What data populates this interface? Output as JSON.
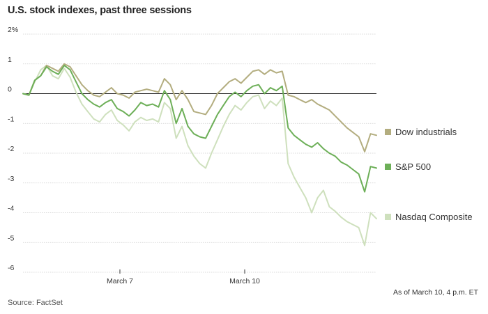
{
  "title": "U.S. stock indexes, past three sessions",
  "source": "Source: FactSet",
  "note": "As of March 10, 4 p.m. ET",
  "chart_data": {
    "type": "line",
    "x_ticks": [
      "March 7",
      "March 10"
    ],
    "y_tick_labels": [
      "2%",
      "1",
      "0",
      "-1",
      "-2",
      "-3",
      "-4",
      "-5",
      "-6"
    ],
    "y_ticks": [
      2,
      1,
      0,
      -1,
      -2,
      -3,
      -4,
      -5,
      -6
    ],
    "ylim": [
      -6,
      2
    ],
    "x_domain": [
      0,
      60
    ],
    "series": [
      {
        "name": "Dow industrials",
        "color": "#b3ad7f",
        "points": [
          [
            0,
            0
          ],
          [
            1,
            -0.05
          ],
          [
            2,
            0.45
          ],
          [
            3,
            0.6
          ],
          [
            4,
            0.95
          ],
          [
            5,
            0.85
          ],
          [
            6,
            0.75
          ],
          [
            7,
            1.0
          ],
          [
            8,
            0.9
          ],
          [
            9,
            0.6
          ],
          [
            10,
            0.3
          ],
          [
            11,
            0.1
          ],
          [
            12,
            -0.05
          ],
          [
            13,
            -0.1
          ],
          [
            14,
            0.05
          ],
          [
            15,
            0.2
          ],
          [
            16,
            0.0
          ],
          [
            17,
            -0.05
          ],
          [
            18,
            -0.15
          ],
          [
            19,
            0.05
          ],
          [
            20,
            0.1
          ],
          [
            21,
            0.15
          ],
          [
            22,
            0.1
          ],
          [
            23,
            0.05
          ],
          [
            24,
            0.5
          ],
          [
            25,
            0.3
          ],
          [
            26,
            -0.2
          ],
          [
            27,
            0.1
          ],
          [
            28,
            -0.2
          ],
          [
            29,
            -0.6
          ],
          [
            30,
            -0.65
          ],
          [
            31,
            -0.7
          ],
          [
            32,
            -0.4
          ],
          [
            33,
            0.0
          ],
          [
            34,
            0.2
          ],
          [
            35,
            0.4
          ],
          [
            36,
            0.5
          ],
          [
            37,
            0.35
          ],
          [
            38,
            0.55
          ],
          [
            39,
            0.75
          ],
          [
            40,
            0.8
          ],
          [
            41,
            0.65
          ],
          [
            42,
            0.8
          ],
          [
            43,
            0.7
          ],
          [
            44,
            0.75
          ],
          [
            45,
            -0.05
          ],
          [
            46,
            -0.1
          ],
          [
            47,
            -0.2
          ],
          [
            48,
            -0.3
          ],
          [
            49,
            -0.2
          ],
          [
            50,
            -0.35
          ],
          [
            51,
            -0.45
          ],
          [
            52,
            -0.55
          ],
          [
            53,
            -0.75
          ],
          [
            54,
            -0.95
          ],
          [
            55,
            -1.15
          ],
          [
            56,
            -1.3
          ],
          [
            57,
            -1.45
          ],
          [
            58,
            -1.95
          ],
          [
            59,
            -1.35
          ],
          [
            60,
            -1.4
          ]
        ]
      },
      {
        "name": "S&P 500",
        "color": "#6daf58",
        "points": [
          [
            0,
            0
          ],
          [
            1,
            -0.05
          ],
          [
            2,
            0.45
          ],
          [
            3,
            0.6
          ],
          [
            4,
            0.9
          ],
          [
            5,
            0.75
          ],
          [
            6,
            0.65
          ],
          [
            7,
            0.95
          ],
          [
            8,
            0.8
          ],
          [
            9,
            0.4
          ],
          [
            10,
            0.0
          ],
          [
            11,
            -0.2
          ],
          [
            12,
            -0.35
          ],
          [
            13,
            -0.45
          ],
          [
            14,
            -0.3
          ],
          [
            15,
            -0.2
          ],
          [
            16,
            -0.5
          ],
          [
            17,
            -0.6
          ],
          [
            18,
            -0.75
          ],
          [
            19,
            -0.55
          ],
          [
            20,
            -0.3
          ],
          [
            21,
            -0.4
          ],
          [
            22,
            -0.35
          ],
          [
            23,
            -0.45
          ],
          [
            24,
            0.1
          ],
          [
            25,
            -0.2
          ],
          [
            26,
            -1.0
          ],
          [
            27,
            -0.5
          ],
          [
            28,
            -1.1
          ],
          [
            29,
            -1.35
          ],
          [
            30,
            -1.45
          ],
          [
            31,
            -1.5
          ],
          [
            32,
            -1.1
          ],
          [
            33,
            -0.7
          ],
          [
            34,
            -0.4
          ],
          [
            35,
            -0.1
          ],
          [
            36,
            0.05
          ],
          [
            37,
            -0.1
          ],
          [
            38,
            0.1
          ],
          [
            39,
            0.25
          ],
          [
            40,
            0.3
          ],
          [
            41,
            0.0
          ],
          [
            42,
            0.2
          ],
          [
            43,
            0.1
          ],
          [
            44,
            0.25
          ],
          [
            45,
            -1.15
          ],
          [
            46,
            -1.4
          ],
          [
            47,
            -1.55
          ],
          [
            48,
            -1.7
          ],
          [
            49,
            -1.8
          ],
          [
            50,
            -1.65
          ],
          [
            51,
            -1.85
          ],
          [
            52,
            -2.0
          ],
          [
            53,
            -2.1
          ],
          [
            54,
            -2.3
          ],
          [
            55,
            -2.4
          ],
          [
            56,
            -2.55
          ],
          [
            57,
            -2.7
          ],
          [
            58,
            -3.3
          ],
          [
            59,
            -2.45
          ],
          [
            60,
            -2.5
          ]
        ]
      },
      {
        "name": "Nasdaq Composite",
        "color": "#cee0bd",
        "points": [
          [
            0,
            0
          ],
          [
            1,
            -0.05
          ],
          [
            2,
            0.4
          ],
          [
            3,
            0.8
          ],
          [
            4,
            0.95
          ],
          [
            5,
            0.6
          ],
          [
            6,
            0.5
          ],
          [
            7,
            0.85
          ],
          [
            8,
            0.55
          ],
          [
            9,
            0.05
          ],
          [
            10,
            -0.35
          ],
          [
            11,
            -0.6
          ],
          [
            12,
            -0.85
          ],
          [
            13,
            -0.95
          ],
          [
            14,
            -0.7
          ],
          [
            15,
            -0.55
          ],
          [
            16,
            -0.9
          ],
          [
            17,
            -1.05
          ],
          [
            18,
            -1.25
          ],
          [
            19,
            -0.95
          ],
          [
            20,
            -0.8
          ],
          [
            21,
            -0.9
          ],
          [
            22,
            -0.85
          ],
          [
            23,
            -0.95
          ],
          [
            24,
            -0.3
          ],
          [
            25,
            -0.5
          ],
          [
            26,
            -1.5
          ],
          [
            27,
            -1.1
          ],
          [
            28,
            -1.75
          ],
          [
            29,
            -2.1
          ],
          [
            30,
            -2.35
          ],
          [
            31,
            -2.5
          ],
          [
            32,
            -2.0
          ],
          [
            33,
            -1.55
          ],
          [
            34,
            -1.1
          ],
          [
            35,
            -0.7
          ],
          [
            36,
            -0.4
          ],
          [
            37,
            -0.55
          ],
          [
            38,
            -0.3
          ],
          [
            39,
            -0.1
          ],
          [
            40,
            -0.05
          ],
          [
            41,
            -0.5
          ],
          [
            42,
            -0.25
          ],
          [
            43,
            -0.4
          ],
          [
            44,
            -0.15
          ],
          [
            45,
            -2.35
          ],
          [
            46,
            -2.8
          ],
          [
            47,
            -3.15
          ],
          [
            48,
            -3.5
          ],
          [
            49,
            -4.0
          ],
          [
            50,
            -3.5
          ],
          [
            51,
            -3.25
          ],
          [
            52,
            -3.8
          ],
          [
            53,
            -3.95
          ],
          [
            54,
            -4.15
          ],
          [
            55,
            -4.3
          ],
          [
            56,
            -4.4
          ],
          [
            57,
            -4.5
          ],
          [
            58,
            -5.1
          ],
          [
            59,
            -4.0
          ],
          [
            60,
            -4.2
          ]
        ]
      }
    ]
  }
}
